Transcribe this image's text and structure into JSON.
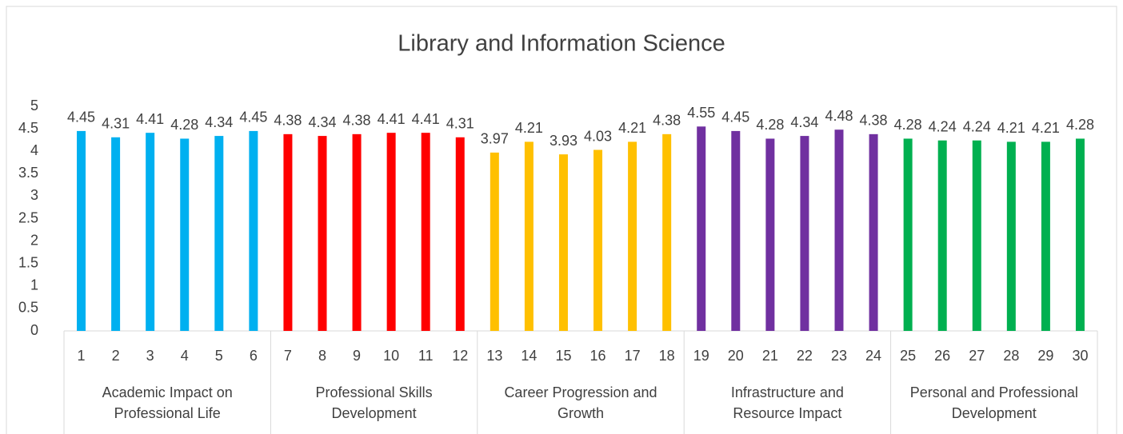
{
  "chart_data": {
    "type": "bar",
    "title": "Library and Information Science",
    "ylim": [
      0,
      5
    ],
    "yticks": [
      0,
      0.5,
      1,
      1.5,
      2,
      2.5,
      3,
      3.5,
      4,
      4.5,
      5
    ],
    "grid": false,
    "groups": [
      {
        "name": "Academic Impact on Professional Life",
        "color": "#00b0f0",
        "categories": [
          "1",
          "2",
          "3",
          "4",
          "5",
          "6"
        ],
        "values": [
          4.45,
          4.31,
          4.41,
          4.28,
          4.34,
          4.45
        ]
      },
      {
        "name": "Professional Skills Development",
        "color": "#ff0000",
        "categories": [
          "7",
          "8",
          "9",
          "10",
          "11",
          "12"
        ],
        "values": [
          4.38,
          4.34,
          4.38,
          4.41,
          4.41,
          4.31
        ]
      },
      {
        "name": "Career Progression and Growth",
        "color": "#ffc000",
        "categories": [
          "13",
          "14",
          "15",
          "16",
          "17",
          "18"
        ],
        "values": [
          3.97,
          4.21,
          3.93,
          4.03,
          4.21,
          4.38
        ]
      },
      {
        "name": "Infrastructure and Resource Impact",
        "color": "#7030a0",
        "categories": [
          "19",
          "20",
          "21",
          "22",
          "23",
          "24"
        ],
        "values": [
          4.55,
          4.45,
          4.28,
          4.34,
          4.48,
          4.38
        ]
      },
      {
        "name": "Personal and Professional Development",
        "color": "#00b050",
        "categories": [
          "25",
          "26",
          "27",
          "28",
          "29",
          "30"
        ],
        "values": [
          4.28,
          4.24,
          4.24,
          4.21,
          4.21,
          4.28
        ]
      }
    ]
  }
}
